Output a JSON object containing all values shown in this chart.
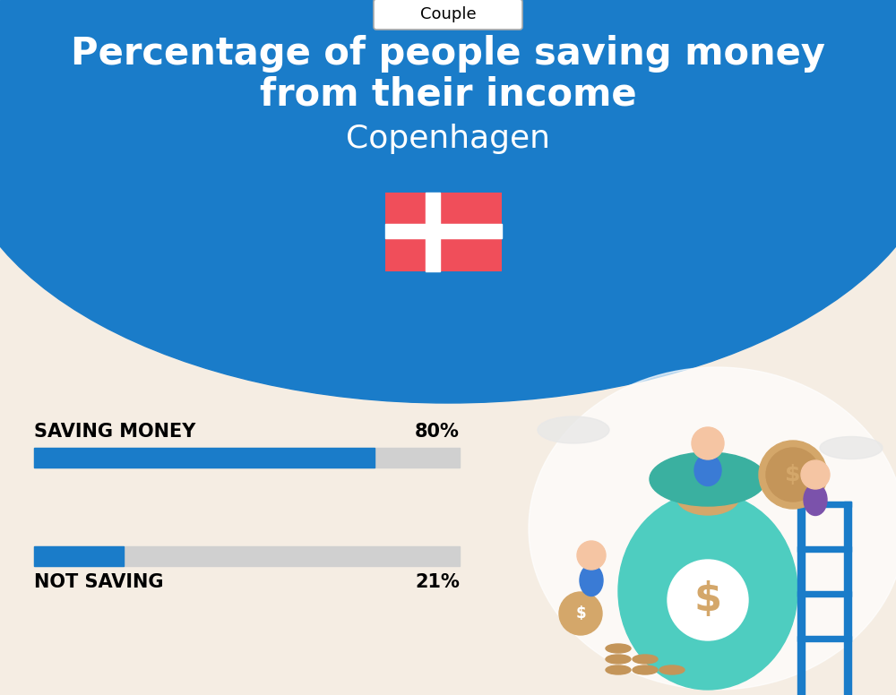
{
  "title_line1": "Percentage of people saving money",
  "title_line2": "from their income",
  "subtitle": "Copenhagen",
  "tab_label": "Couple",
  "background_color": "#f5ede3",
  "blue_bg_color": "#1a7cc9",
  "bar_color": "#1a7cc9",
  "bar_bg_color": "#d0d0d0",
  "saving_label": "SAVING MONEY",
  "saving_value": 80,
  "saving_pct_label": "80%",
  "not_saving_label": "NOT SAVING",
  "not_saving_value": 21,
  "not_saving_pct_label": "21%",
  "label_fontsize": 15,
  "pct_fontsize": 15,
  "title_fontsize": 30,
  "subtitle_fontsize": 26,
  "tab_fontsize": 13,
  "flag_red": "#f04e5a",
  "flag_white": "#ffffff",
  "illus_bg": "#ffffff",
  "cloud_color": "#f0f0f0"
}
